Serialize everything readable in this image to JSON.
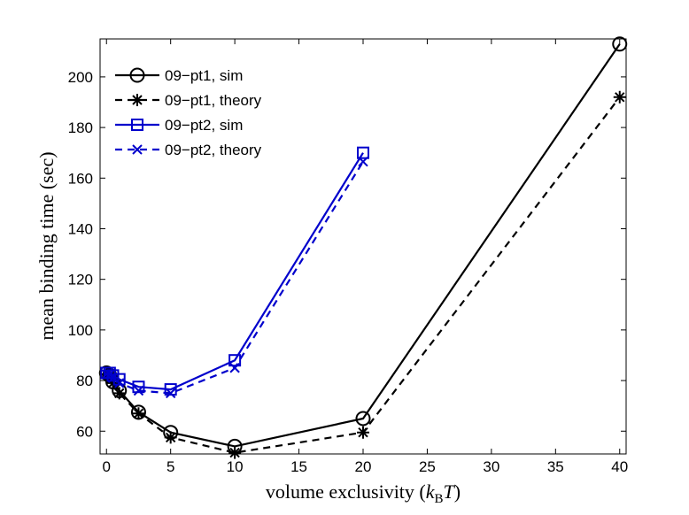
{
  "chart_data": {
    "type": "line",
    "xlabel": "volume exclusivity (k_B T)",
    "xlabel_main": "volume exclusivity (",
    "xlabel_k": "k",
    "xlabel_sub": "B",
    "xlabel_T": "T",
    "xlabel_close": ")",
    "ylabel": "mean binding time (sec)",
    "xlim": [
      -0.5,
      40.5
    ],
    "ylim": [
      51,
      215
    ],
    "xticks": [
      0,
      5,
      10,
      15,
      20,
      25,
      30,
      35,
      40
    ],
    "yticks": [
      60,
      80,
      100,
      120,
      140,
      160,
      180,
      200
    ],
    "grid": false,
    "legend_position": "top-left",
    "series": [
      {
        "name": "09−pt1, sim",
        "color": "#000000",
        "dash": "solid",
        "marker": "circle",
        "x": [
          0,
          0.25,
          0.5,
          1,
          2.5,
          5,
          10,
          20,
          40
        ],
        "y": [
          83,
          82,
          79.5,
          76,
          67.5,
          59.5,
          54,
          65,
          213
        ]
      },
      {
        "name": "09−pt1, theory",
        "color": "#000000",
        "dash": "dashed",
        "marker": "asterisk",
        "x": [
          0,
          0.25,
          0.5,
          1,
          2.5,
          5,
          10,
          20,
          40
        ],
        "y": [
          82.5,
          81.5,
          79,
          75,
          67,
          57.5,
          51.5,
          59.5,
          192
        ]
      },
      {
        "name": "09−pt2, sim",
        "color": "#0000cc",
        "dash": "solid",
        "marker": "square",
        "x": [
          0,
          0.25,
          0.5,
          1,
          2.5,
          5,
          10,
          20
        ],
        "y": [
          83,
          83,
          82,
          80.5,
          77.5,
          76.5,
          88,
          170
        ]
      },
      {
        "name": "09−pt2, theory",
        "color": "#0000cc",
        "dash": "dashed",
        "marker": "x",
        "x": [
          0,
          0.25,
          0.5,
          1,
          2.5,
          5,
          10,
          20
        ],
        "y": [
          82.5,
          82.5,
          81,
          79,
          76,
          75,
          85,
          166.5
        ]
      }
    ]
  }
}
